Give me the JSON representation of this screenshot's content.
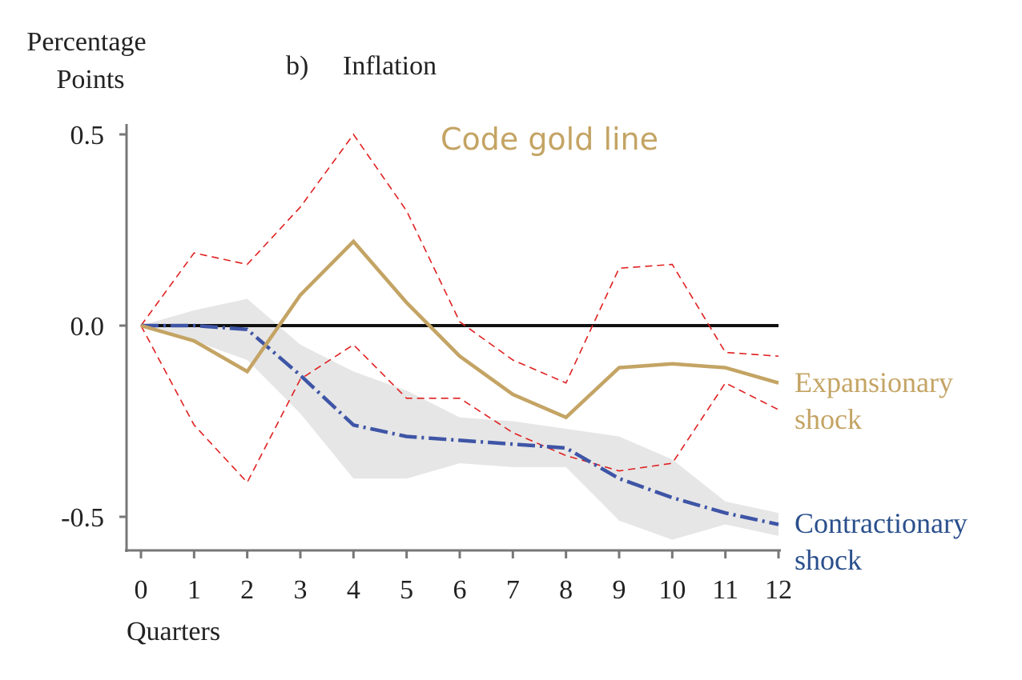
{
  "chart_data": {
    "type": "line",
    "panel_label": "b)",
    "title": "Inflation",
    "ylabel_line1": "Percentage",
    "ylabel_line2": "Points",
    "xlabel": "Quarters",
    "annotation": "Code gold line",
    "ylim": [
      -0.59,
      0.54
    ],
    "xlim": [
      0,
      12
    ],
    "yticks": [
      0.5,
      0.0,
      -0.5
    ],
    "ytick_labels": [
      "0.5",
      "0.0",
      "-0.5"
    ],
    "x": [
      0,
      1,
      2,
      3,
      4,
      5,
      6,
      7,
      8,
      9,
      10,
      11,
      12
    ],
    "series": [
      {
        "name": "Expansionary shock",
        "label_line1": "Expansionary",
        "label_line2": "shock",
        "color": "#c4a464",
        "style": "solid",
        "values": [
          0.0,
          -0.04,
          -0.12,
          0.08,
          0.22,
          0.06,
          -0.08,
          -0.18,
          -0.24,
          -0.11,
          -0.1,
          -0.11,
          -0.15
        ]
      },
      {
        "name": "Contractionary shock",
        "label_line1": "Contractionary",
        "label_line2": "shock",
        "color": "#3e55a6",
        "label_color": "#2a4f8c",
        "style": "dashdot",
        "values": [
          0.0,
          0.0,
          -0.01,
          -0.13,
          -0.26,
          -0.29,
          -0.3,
          -0.31,
          -0.32,
          -0.4,
          -0.45,
          -0.49,
          -0.52
        ]
      }
    ],
    "expansionary_band": {
      "color": "#e02020",
      "style": "dashed",
      "upper": [
        0.0,
        0.19,
        0.16,
        0.31,
        0.5,
        0.3,
        0.01,
        -0.09,
        -0.15,
        0.15,
        0.16,
        -0.07,
        -0.08
      ],
      "lower": [
        0.0,
        -0.26,
        -0.41,
        -0.14,
        -0.05,
        -0.19,
        -0.19,
        -0.28,
        -0.34,
        -0.38,
        -0.36,
        -0.15,
        -0.22
      ]
    },
    "contractionary_band": {
      "color": "#e6e6e6",
      "upper": [
        0.0,
        0.04,
        0.07,
        -0.05,
        -0.12,
        -0.17,
        -0.24,
        -0.25,
        -0.27,
        -0.29,
        -0.35,
        -0.46,
        -0.49
      ],
      "lower": [
        0.0,
        -0.04,
        -0.09,
        -0.23,
        -0.4,
        -0.4,
        -0.36,
        -0.37,
        -0.37,
        -0.51,
        -0.56,
        -0.52,
        -0.55
      ]
    },
    "zero_line": true,
    "grid": false
  }
}
